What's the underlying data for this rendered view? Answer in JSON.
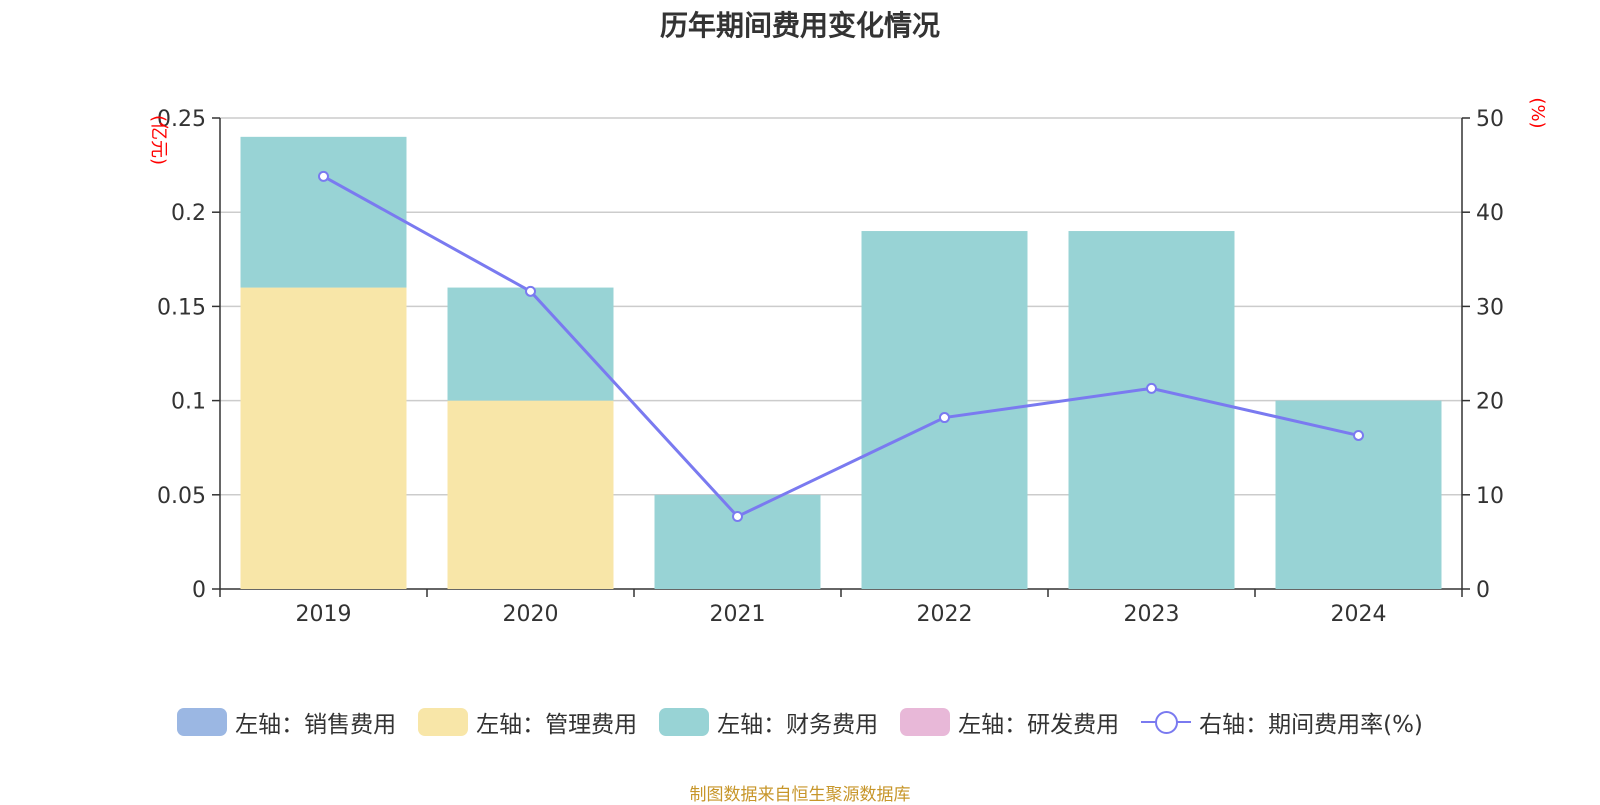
{
  "chart_data": {
    "type": "bar",
    "title": "历年期间费用变化情况",
    "categories": [
      "2019",
      "2020",
      "2021",
      "2022",
      "2023",
      "2024"
    ],
    "series": [
      {
        "name": "左轴：销售费用",
        "type": "bar",
        "axis": "left",
        "color": "#9bb7e3",
        "values": [
          0,
          0,
          0,
          0,
          0,
          0
        ]
      },
      {
        "name": "左轴：管理费用",
        "type": "bar",
        "axis": "left",
        "color": "#f8e6a8",
        "values": [
          0.16,
          0.1,
          0,
          0,
          0,
          0
        ]
      },
      {
        "name": "左轴：财务费用",
        "type": "bar",
        "axis": "left",
        "color": "#98d3d5",
        "values": [
          0.08,
          0.06,
          0.05,
          0.19,
          0.19,
          0.1
        ]
      },
      {
        "name": "左轴：研发费用",
        "type": "bar",
        "axis": "left",
        "color": "#e8b8d8",
        "values": [
          0,
          0,
          0,
          0,
          0,
          0
        ]
      },
      {
        "name": "右轴：期间费用率(%)",
        "type": "line",
        "axis": "right",
        "color": "#7a7af0",
        "values": [
          43.8,
          31.6,
          7.7,
          18.2,
          21.3,
          16.3
        ]
      }
    ],
    "y_left": {
      "unit": "(亿元)",
      "ylim": [
        0,
        0.25
      ],
      "ticks": [
        "0",
        "0.05",
        "0.1",
        "0.15",
        "0.2",
        "0.25"
      ]
    },
    "y_right": {
      "unit": "(%)",
      "ylim": [
        0,
        50
      ],
      "ticks": [
        "0",
        "10",
        "20",
        "30",
        "40",
        "50"
      ]
    },
    "grid": true,
    "legend_position": "bottom"
  },
  "source_note": "制图数据来自恒生聚源数据库"
}
